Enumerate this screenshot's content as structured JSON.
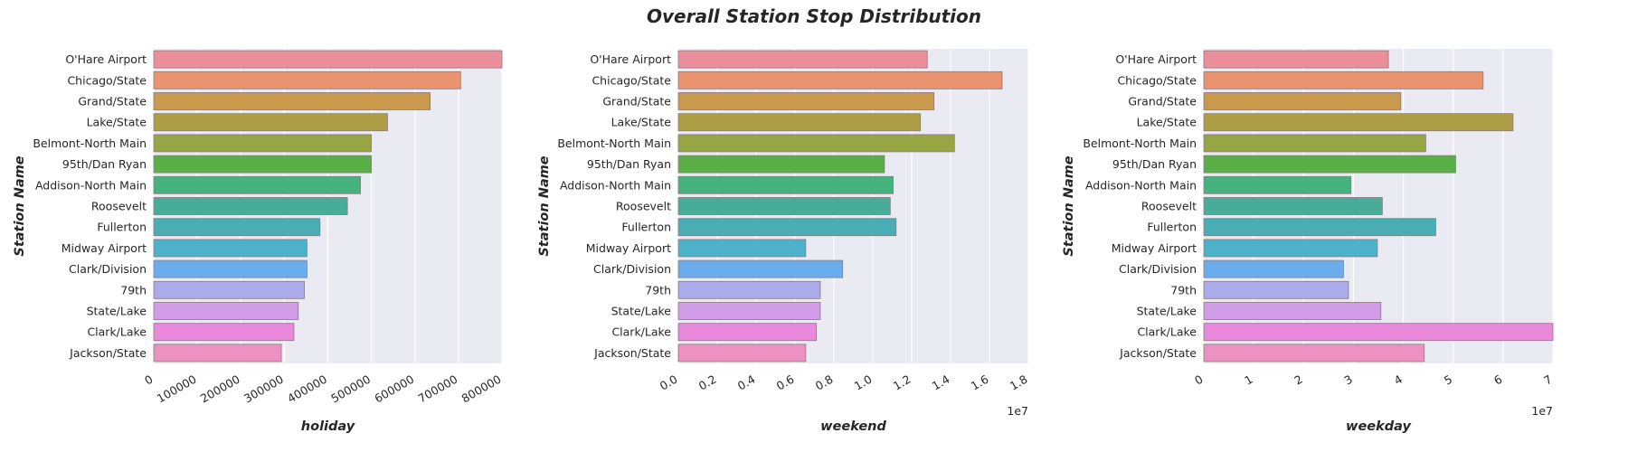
{
  "title": "Overall Station Stop Distribution",
  "palette": [
    "#ea8f9b",
    "#e9936f",
    "#c99a4d",
    "#ae9e45",
    "#97a545",
    "#5aaf47",
    "#46b27d",
    "#47ad98",
    "#49aeb3",
    "#4cb2c9",
    "#6bacec",
    "#abaaeb",
    "#d39ce9",
    "#ea88dc",
    "#ed90c2"
  ],
  "chart_data": [
    {
      "type": "bar",
      "orientation": "horizontal",
      "categories": [
        "O'Hare Airport",
        "Chicago/State",
        "Grand/State",
        "Lake/State",
        "Belmont-North Main",
        "95th/Dan Ryan",
        "Addison-North Main",
        "Roosevelt",
        "Fullerton",
        "Midway Airport",
        "Clark/Division",
        "79th",
        "State/Lake",
        "Clark/Lake",
        "Jackson/State"
      ],
      "values": [
        800000,
        705000,
        635000,
        537000,
        500000,
        500000,
        475000,
        445000,
        382000,
        352000,
        352000,
        346000,
        332000,
        322000,
        293000
      ],
      "xlabel": "holiday",
      "ylabel": "Station Name",
      "xlim": [
        0,
        800000
      ],
      "xticks": [
        "0",
        "100000",
        "200000",
        "300000",
        "400000",
        "500000",
        "600000",
        "700000",
        "800000"
      ],
      "offset_label": ""
    },
    {
      "type": "bar",
      "orientation": "horizontal",
      "categories": [
        "O'Hare Airport",
        "Chicago/State",
        "Grand/State",
        "Lake/State",
        "Belmont-North Main",
        "95th/Dan Ryan",
        "Addison-North Main",
        "Roosevelt",
        "Fullerton",
        "Midway Airport",
        "Clark/Division",
        "79th",
        "State/Lake",
        "Clark/Lake",
        "Jackson/State"
      ],
      "values": [
        12800000,
        16650000,
        13150000,
        12450000,
        14200000,
        10600000,
        11050000,
        10900000,
        11200000,
        6550000,
        8450000,
        7300000,
        7300000,
        7100000,
        6550000
      ],
      "xlabel": "weekend",
      "ylabel": "Station Name",
      "xlim": [
        0,
        18000000
      ],
      "xticks": [
        "0.0",
        "0.2",
        "0.4",
        "0.6",
        "0.8",
        "1.0",
        "1.2",
        "1.4",
        "1.6",
        "1.8"
      ],
      "offset_label": "1e7"
    },
    {
      "type": "bar",
      "orientation": "horizontal",
      "categories": [
        "O'Hare Airport",
        "Chicago/State",
        "Grand/State",
        "Lake/State",
        "Belmont-North Main",
        "95th/Dan Ryan",
        "Addison-North Main",
        "Roosevelt",
        "Fullerton",
        "Midway Airport",
        "Clark/Division",
        "79th",
        "State/Lake",
        "Clark/Lake",
        "Jackson/State"
      ],
      "values": [
        37000000,
        56000000,
        39500000,
        62000000,
        44500000,
        50500000,
        29500000,
        35800000,
        46500000,
        34800000,
        28000000,
        29000000,
        35500000,
        70000000,
        44200000
      ],
      "xlabel": "weekday",
      "ylabel": "Station Name",
      "xlim": [
        0,
        70000000
      ],
      "xticks": [
        "0",
        "1",
        "2",
        "3",
        "4",
        "5",
        "6",
        "7"
      ],
      "offset_label": "1e7"
    }
  ]
}
